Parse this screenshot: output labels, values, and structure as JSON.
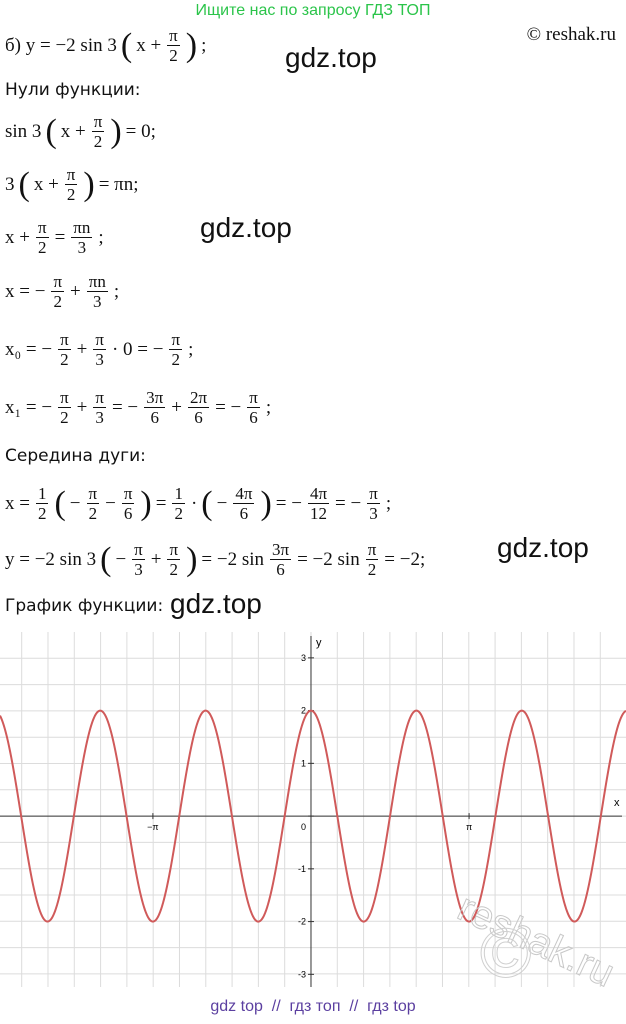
{
  "header": {
    "banner": "Ищите нас по запросу ГДЗ ТОП",
    "copyright": "© reshak.ru"
  },
  "lines": [
    [
      "б) y = −2 sin 3",
      "(",
      "x +",
      {
        "num": "π",
        "den": "2"
      },
      ")",
      ";"
    ],
    [
      "Нули функции:"
    ],
    [
      "sin 3",
      "(",
      "x +",
      {
        "num": "π",
        "den": "2"
      },
      ")",
      "= 0;"
    ],
    [
      "3",
      "(",
      "x +",
      {
        "num": "π",
        "den": "2"
      },
      ")",
      "= πn;"
    ],
    [
      "x +",
      {
        "num": "π",
        "den": "2"
      },
      "=",
      {
        "num": "πn",
        "den": "3"
      },
      ";"
    ],
    [
      "x = −",
      {
        "num": "π",
        "den": "2"
      },
      "+",
      {
        "num": "πn",
        "den": "3"
      },
      ";"
    ],
    [
      "x₀ = −",
      {
        "num": "π",
        "den": "2"
      },
      "+",
      {
        "num": "π",
        "den": "3"
      },
      "· 0 = −",
      {
        "num": "π",
        "den": "2"
      },
      ";"
    ],
    [
      "x₁ = −",
      {
        "num": "π",
        "den": "2"
      },
      "+",
      {
        "num": "π",
        "den": "3"
      },
      "= −",
      {
        "num": "3π",
        "den": "6"
      },
      "+",
      {
        "num": "2π",
        "den": "6"
      },
      "= −",
      {
        "num": "π",
        "den": "6"
      },
      ";"
    ],
    [
      "Середина дуги:"
    ],
    [
      "x =",
      {
        "num": "1",
        "den": "2"
      },
      "(",
      "−",
      {
        "num": "π",
        "den": "2"
      },
      "−",
      {
        "num": "π",
        "den": "6"
      },
      ")",
      "=",
      {
        "num": "1",
        "den": "2"
      },
      "·",
      "(",
      "−",
      {
        "num": "4π",
        "den": "6"
      },
      ")",
      "= −",
      {
        "num": "4π",
        "den": "12"
      },
      "= −",
      {
        "num": "π",
        "den": "3"
      },
      ";"
    ],
    [
      "y = −2 sin 3",
      "(",
      "−",
      {
        "num": "π",
        "den": "3"
      },
      "+",
      {
        "num": "π",
        "den": "2"
      },
      ")",
      "= −2 sin",
      {
        "num": "3π",
        "den": "6"
      },
      "= −2 sin",
      {
        "num": "π",
        "den": "2"
      },
      "= −2;"
    ],
    [
      "График функции:"
    ]
  ],
  "watermarks": [
    "gdz.top",
    "gdz.top",
    "gdz.top",
    "gdz.top"
  ],
  "graph": {
    "x_label": "x",
    "y_label": "y",
    "xlim": [
      -6.18,
      6.26
    ],
    "ylim": [
      -3.24,
      3.49
    ],
    "xticks": [
      {
        "value": -3.1416,
        "label": "−π"
      },
      {
        "value": 3.1416,
        "label": "π"
      }
    ],
    "yticks": [
      -3,
      -2,
      -1,
      0,
      1,
      2,
      3
    ],
    "curve": {
      "a": -2,
      "b": 3,
      "c": 1.5708,
      "color": "#d05a5a"
    },
    "watermark": "reshak.ru",
    "watermark_symbol": "©"
  },
  "footer": "gdz top  //  гдз топ  //  гдз top"
}
